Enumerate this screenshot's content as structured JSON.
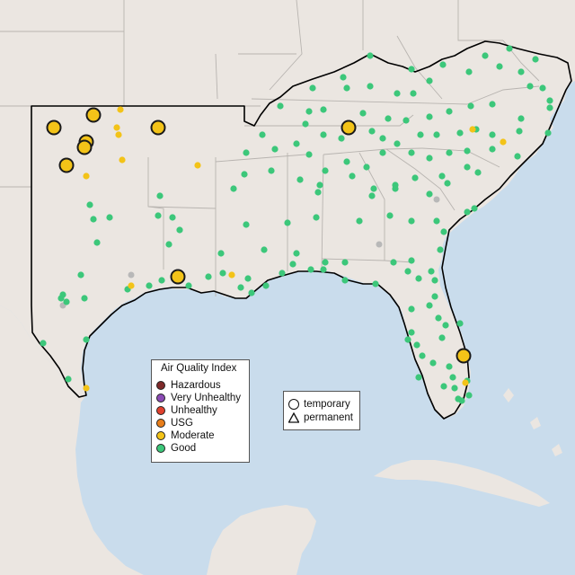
{
  "map": {
    "colors": {
      "water": "#c9dcec",
      "land": "#ebe6e1",
      "state_border": "#b8b4b0",
      "region_outline": "#000000"
    }
  },
  "aqi_legend": {
    "title": "Air Quality Index",
    "items": [
      {
        "label": "Hazardous",
        "color": "#7e2a2a"
      },
      {
        "label": "Very Unhealthy",
        "color": "#8b4bb5"
      },
      {
        "label": "Unhealthy",
        "color": "#e0412e"
      },
      {
        "label": "USG",
        "color": "#e87e1a"
      },
      {
        "label": "Moderate",
        "color": "#f3c318"
      },
      {
        "label": "Good",
        "color": "#3cc77a"
      }
    ]
  },
  "site_legend": {
    "items": [
      {
        "label": "temporary",
        "shape": "circle"
      },
      {
        "label": "permanent",
        "shape": "triangle"
      }
    ]
  }
}
